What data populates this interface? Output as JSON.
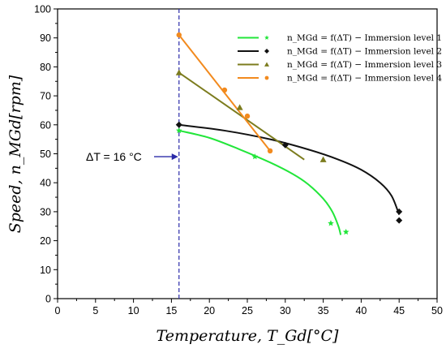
{
  "chart_data": {
    "type": "line",
    "title": "",
    "xlabel": "Temperature, T_Gd[°C]",
    "ylabel": "Speed, n_MGd[rpm]",
    "xlim": [
      0,
      50
    ],
    "ylim": [
      0,
      100
    ],
    "xticks": [
      "0",
      "5",
      "10",
      "15",
      "20",
      "25",
      "30",
      "35",
      "40",
      "45",
      "50"
    ],
    "yticks": [
      "0",
      "10",
      "20",
      "30",
      "40",
      "50",
      "60",
      "70",
      "80",
      "90",
      "100"
    ],
    "grid": false,
    "legend_position": "top-right",
    "annotation": {
      "text": "ΔT = 16 °C",
      "x": 16,
      "y": 49
    },
    "series": [
      {
        "name": "n_MGd = f(ΔT) − Immersion level 1",
        "color": "#22e63a",
        "marker": "star",
        "points": [
          [
            16,
            58
          ],
          [
            26,
            49
          ],
          [
            36,
            26
          ],
          [
            38,
            23
          ]
        ],
        "curve": [
          [
            16,
            58
          ],
          [
            20,
            55.5
          ],
          [
            24,
            51.5
          ],
          [
            28,
            47
          ],
          [
            31,
            43
          ],
          [
            33,
            39.5
          ],
          [
            35,
            34.5
          ],
          [
            36.2,
            30
          ],
          [
            37,
            25
          ],
          [
            37.3,
            22
          ]
        ]
      },
      {
        "name": "n_MGd = f(ΔT) − Immersion level 2",
        "color": "#111111",
        "marker": "diamond",
        "points": [
          [
            16,
            60
          ],
          [
            30,
            53
          ],
          [
            45,
            30
          ],
          [
            45,
            27
          ]
        ],
        "curve": [
          [
            16,
            60
          ],
          [
            22,
            58
          ],
          [
            28,
            55
          ],
          [
            33,
            51.5
          ],
          [
            37,
            48
          ],
          [
            40,
            44.5
          ],
          [
            42.5,
            40
          ],
          [
            44,
            35.5
          ],
          [
            45,
            29
          ]
        ]
      },
      {
        "name": "n_MGd = f(ΔT) − Immersion level 3",
        "color": "#7c7c1e",
        "marker": "triangle",
        "points": [
          [
            16,
            78
          ],
          [
            24,
            66
          ],
          [
            35,
            48
          ]
        ],
        "curve": [
          [
            16,
            78
          ],
          [
            32.5,
            48
          ]
        ]
      },
      {
        "name": "n_MGd = f(ΔT) − Immersion level 4",
        "color": "#f28a1e",
        "marker": "circle",
        "points": [
          [
            16,
            91
          ],
          [
            22,
            72
          ],
          [
            25,
            63
          ],
          [
            28,
            51
          ]
        ],
        "curve": [
          [
            16,
            91
          ],
          [
            28,
            51
          ]
        ]
      }
    ],
    "vline": {
      "x": 16,
      "color": "#2b2ba8",
      "style": "dashed"
    }
  },
  "colors": {
    "arrow": "#2b2ba8",
    "axis": "#000000"
  }
}
